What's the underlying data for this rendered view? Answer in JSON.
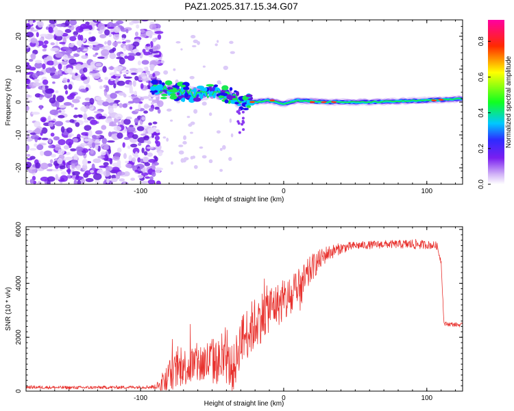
{
  "title": "PAZ1.2025.317.15.34.G07",
  "chart_data": [
    {
      "type": "heatmap",
      "xlabel": "Height of straight line (km)",
      "ylabel": "Frequency (Hz)",
      "xlim": [
        -180,
        125
      ],
      "ylim": [
        -25,
        25
      ],
      "xticks": [
        -100,
        0,
        100
      ],
      "xtick_labels": [
        "-100",
        "0",
        "100"
      ],
      "yticks": [
        -20,
        -10,
        0,
        10,
        20
      ],
      "ytick_labels": [
        "-20",
        "-10",
        "0",
        "10",
        "20"
      ],
      "noise_region_km": [
        -180,
        -90
      ],
      "signal_track": {
        "x": [
          -90,
          -80,
          -70,
          -60,
          -50,
          -40,
          -30,
          -20,
          -10,
          0,
          10,
          30,
          60,
          100,
          125
        ],
        "freq": [
          4,
          3.5,
          3,
          2.5,
          3,
          2,
          0.5,
          0,
          0.5,
          -0.5,
          0.5,
          0,
          0,
          0.5,
          1
        ]
      },
      "colorbar": {
        "label": "Normalized spectral amplitude",
        "range": [
          0,
          0.92
        ],
        "ticks": [
          0.0,
          0.2,
          0.4,
          0.6,
          0.8
        ],
        "tick_labels": [
          "0.0",
          "0.2",
          "0.4",
          "0.6",
          "0.8"
        ],
        "colors": [
          "#ffffff",
          "#c9a6f5",
          "#7a1ff0",
          "#2e2bff",
          "#00c8ff",
          "#10ff20",
          "#ffff00",
          "#ff2a00",
          "#ff00a0"
        ]
      }
    },
    {
      "type": "line",
      "xlabel": "Height of straight line (km)",
      "ylabel": "SNR (10 * v/v)",
      "xlim": [
        -180,
        125
      ],
      "ylim": [
        0,
        6100
      ],
      "xticks": [
        -100,
        0,
        100
      ],
      "xtick_labels": [
        "-100",
        "0",
        "100"
      ],
      "yticks": [
        0,
        2000,
        4000,
        6000
      ],
      "ytick_labels": [
        "0",
        "2000",
        "4000",
        "6000"
      ],
      "line_color": "#e8322e",
      "series": [
        {
          "name": "SNR",
          "x": [
            -180,
            -150,
            -120,
            -100,
            -90,
            -85,
            -80,
            -70,
            -60,
            -50,
            -40,
            -35,
            -30,
            -25,
            -20,
            -10,
            -5,
            0,
            10,
            20,
            30,
            40,
            50,
            60,
            70,
            80,
            90,
            100,
            107,
            110,
            112,
            125
          ],
          "y": [
            150,
            130,
            140,
            150,
            160,
            250,
            600,
            900,
            1000,
            1100,
            1050,
            800,
            1900,
            2200,
            2500,
            3100,
            3200,
            3300,
            3600,
            4600,
            5100,
            5300,
            5400,
            5420,
            5450,
            5450,
            5450,
            5430,
            5400,
            4800,
            2500,
            2450
          ],
          "noise_amplitude": [
            60,
            60,
            60,
            60,
            80,
            300,
            600,
            700,
            800,
            900,
            800,
            900,
            900,
            1000,
            1000,
            900,
            800,
            800,
            900,
            500,
            300,
            200,
            150,
            150,
            150,
            150,
            200,
            150,
            150,
            100,
            80,
            80
          ]
        }
      ]
    }
  ]
}
